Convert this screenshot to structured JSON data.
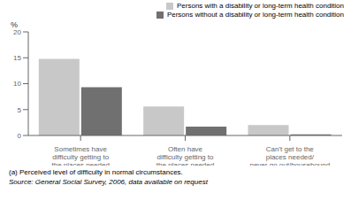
{
  "chart_data": {
    "type": "bar",
    "categories": [
      "Sometimes have\ndifficulty getting to\nthe places needed",
      "Often have\ndifficulty getting to\nthe places needed",
      "Can't get to the\nplaces needed/\nnever go out/housebound"
    ],
    "series": [
      {
        "name": "Persons with a disability or long-term health condition",
        "color": "#c8c8c8",
        "values": [
          14.8,
          5.6,
          2.0
        ]
      },
      {
        "name": "Persons without a disability or long-term health condition",
        "color": "#707070",
        "values": [
          9.3,
          1.7,
          0.2
        ]
      }
    ],
    "ylabel": "%",
    "ylim": [
      0,
      20
    ],
    "yticks": [
      0,
      5,
      10,
      15,
      20
    ],
    "legend": "upper right",
    "grid": false,
    "annotations": [
      "(a) Perceived level of difficulty in normal circumstances.",
      "Source: General Social Survey, 2006, data available on request"
    ]
  }
}
